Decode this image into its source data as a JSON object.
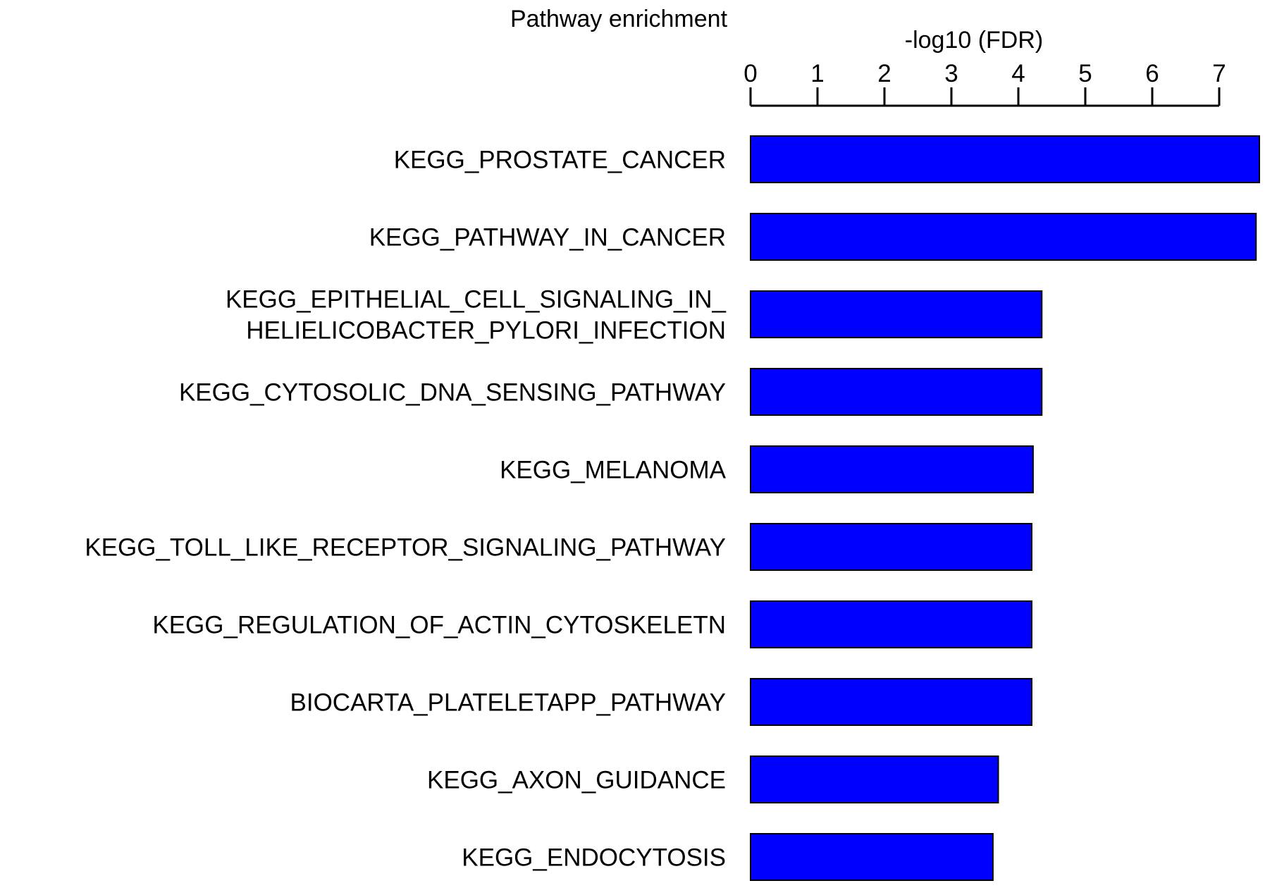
{
  "chart_data": {
    "type": "bar",
    "orientation": "horizontal",
    "title": "Pathway enrichment",
    "xlabel": "-log10 (FDR)",
    "ylabel": "",
    "xlim": [
      0,
      7.6
    ],
    "ticks": [
      0,
      1,
      2,
      3,
      4,
      5,
      6,
      7
    ],
    "axis_position": "top",
    "grid": false,
    "bar_color": "#0000ff",
    "categories": [
      [
        "KEGG_PROSTATE_CANCER"
      ],
      [
        "KEGG_PATHWAY_IN_CANCER"
      ],
      [
        "KEGG_EPITHELIAL_CELL_SIGNALING_IN_",
        "HELIELICOBACTER_PYLORI_INFECTION"
      ],
      [
        "KEGG_CYTOSOLIC_DNA_SENSING_PATHWAY"
      ],
      [
        "KEGG_MELANOMA"
      ],
      [
        "KEGG_TOLL_LIKE_RECEPTOR_SIGNALING_PATHWAY"
      ],
      [
        "KEGG_REGULATION_OF_ACTIN_CYTOSKELETN"
      ],
      [
        "BIOCARTA_PLATELETAPP_PATHWAY"
      ],
      [
        "KEGG_AXON_GUIDANCE"
      ],
      [
        "KEGG_ENDOCYTOSIS"
      ]
    ],
    "values": [
      7.6,
      7.55,
      4.35,
      4.35,
      4.22,
      4.2,
      4.2,
      4.2,
      3.7,
      3.62
    ]
  }
}
